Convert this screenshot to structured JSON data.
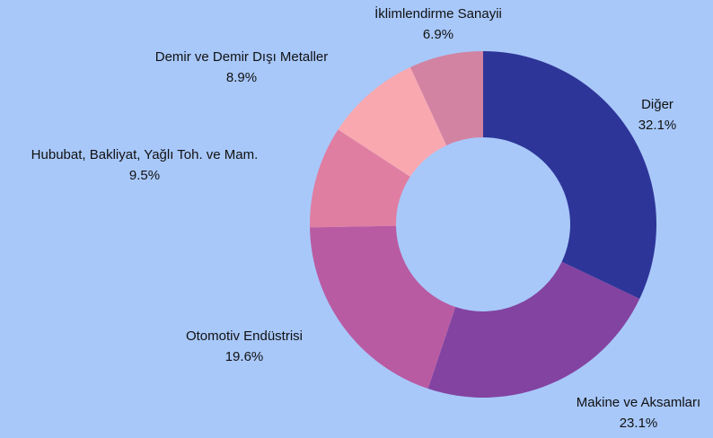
{
  "chart_data": {
    "type": "donut",
    "categories": [
      "Diğer",
      "Makine ve Aksamları",
      "Otomotiv Endüstrisi",
      "Hububat, Bakliyat, Yağlı Toh. ve Mam.",
      "Demir ve Demir Dışı Metaller",
      "İklimlendirme Sanayii"
    ],
    "values": [
      32.1,
      23.1,
      19.6,
      9.5,
      8.9,
      6.9
    ],
    "value_labels": [
      "32.1%",
      "23.1%",
      "19.6%",
      "9.5%",
      "8.9%",
      "6.9%"
    ],
    "colors": [
      "#2e3598",
      "#8343a0",
      "#b95ba2",
      "#e07ea2",
      "#f9a8b0",
      "#d283a2"
    ]
  }
}
